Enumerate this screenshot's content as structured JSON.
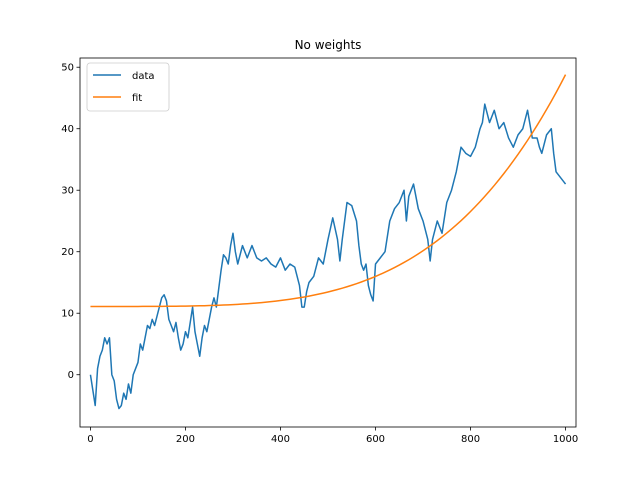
{
  "chart_data": {
    "type": "line",
    "title": "No weights",
    "xlabel": "",
    "ylabel": "",
    "xlim": [
      -22,
      1022
    ],
    "ylim": [
      -8.5,
      51.5
    ],
    "xticks": [
      0,
      200,
      400,
      600,
      800,
      1000
    ],
    "yticks": [
      0,
      10,
      20,
      30,
      40,
      50
    ],
    "grid": false,
    "legend_position": "top-left",
    "series": [
      {
        "name": "data",
        "color": "#1f77b4",
        "x": [
          0,
          5,
          10,
          15,
          20,
          25,
          30,
          35,
          40,
          45,
          50,
          55,
          60,
          65,
          70,
          75,
          80,
          85,
          90,
          95,
          100,
          105,
          110,
          115,
          120,
          125,
          130,
          135,
          140,
          145,
          150,
          155,
          160,
          165,
          170,
          175,
          180,
          185,
          190,
          195,
          200,
          205,
          210,
          215,
          220,
          225,
          230,
          235,
          240,
          245,
          250,
          255,
          260,
          265,
          270,
          275,
          280,
          285,
          290,
          295,
          300,
          305,
          310,
          320,
          330,
          340,
          350,
          360,
          370,
          380,
          390,
          400,
          410,
          420,
          430,
          440,
          445,
          450,
          455,
          460,
          470,
          480,
          490,
          500,
          510,
          520,
          525,
          530,
          540,
          550,
          560,
          565,
          570,
          575,
          580,
          585,
          590,
          595,
          600,
          610,
          620,
          630,
          640,
          650,
          660,
          665,
          670,
          680,
          690,
          700,
          710,
          715,
          720,
          730,
          740,
          750,
          760,
          770,
          780,
          790,
          800,
          810,
          820,
          825,
          830,
          840,
          850,
          860,
          870,
          880,
          890,
          900,
          910,
          915,
          920,
          930,
          940,
          945,
          950,
          960,
          970,
          975,
          980,
          990,
          1000
        ],
        "y": [
          0,
          -2.5,
          -5,
          1,
          3,
          4,
          6,
          5,
          6,
          0,
          -1,
          -4,
          -5.5,
          -5,
          -3,
          -4,
          -1.5,
          -3,
          0,
          1,
          2,
          5,
          4,
          6,
          8,
          7.5,
          9,
          8,
          9.5,
          11,
          12.5,
          13,
          12,
          9,
          8,
          7,
          8.5,
          6,
          4,
          5,
          7,
          6,
          8.5,
          11,
          7,
          5,
          3,
          6,
          8,
          7,
          9,
          11,
          12.5,
          11,
          14,
          17,
          19.5,
          19,
          18,
          21,
          23,
          20,
          18,
          21,
          19,
          21,
          19,
          18.5,
          19,
          18,
          17.5,
          19,
          17,
          18,
          17.5,
          14.5,
          11,
          11,
          13.5,
          15,
          16,
          19,
          18,
          22,
          25.5,
          22,
          18.5,
          22,
          28,
          27.5,
          25,
          21,
          18,
          17,
          18,
          14.5,
          13,
          12,
          18,
          19,
          20,
          25,
          27,
          28,
          30,
          25,
          29,
          31,
          27,
          25,
          22,
          18.5,
          22,
          25,
          23,
          28,
          30,
          33,
          37,
          36,
          35.5,
          37,
          40,
          41,
          44,
          41,
          43,
          40,
          41,
          38.5,
          37,
          39,
          40,
          41.5,
          43,
          38.5,
          38.5,
          37,
          36,
          39,
          40,
          36,
          33,
          32,
          31
        ]
      },
      {
        "name": "fit",
        "color": "#ff7f0e",
        "model": {
          "a": 11.1,
          "b": 37.7,
          "power": 4
        }
      }
    ]
  }
}
